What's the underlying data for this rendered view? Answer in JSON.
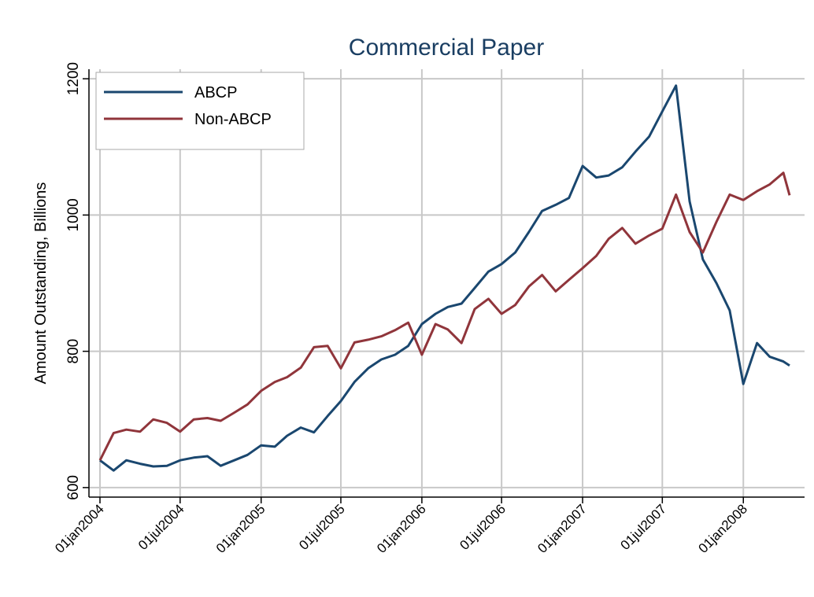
{
  "chart_data": {
    "type": "line",
    "title": "Commercial Paper",
    "y_label": "Amount Outstanding, Billions",
    "x": [
      "2004-01-01",
      "2004-02-01",
      "2004-03-01",
      "2004-04-01",
      "2004-05-01",
      "2004-06-01",
      "2004-07-01",
      "2004-08-01",
      "2004-09-01",
      "2004-10-01",
      "2004-11-01",
      "2004-12-01",
      "2005-01-01",
      "2005-02-01",
      "2005-03-01",
      "2005-04-01",
      "2005-05-01",
      "2005-06-01",
      "2005-07-01",
      "2005-08-01",
      "2005-09-01",
      "2005-10-01",
      "2005-11-01",
      "2005-12-01",
      "2006-01-01",
      "2006-02-01",
      "2006-03-01",
      "2006-04-01",
      "2006-05-01",
      "2006-06-01",
      "2006-07-01",
      "2006-08-01",
      "2006-09-01",
      "2006-10-01",
      "2006-11-01",
      "2006-12-01",
      "2007-01-01",
      "2007-02-01",
      "2007-03-01",
      "2007-04-01",
      "2007-05-01",
      "2007-06-01",
      "2007-07-01",
      "2007-08-01",
      "2007-09-01",
      "2007-10-01",
      "2007-11-01",
      "2007-12-01",
      "2008-01-01",
      "2008-02-01",
      "2008-03-01",
      "2008-04-01",
      "2008-04-15"
    ],
    "series": [
      {
        "name": "ABCP",
        "color": "#1a476f",
        "values": [
          640,
          625,
          640,
          635,
          631,
          632,
          640,
          644,
          646,
          632,
          640,
          648,
          662,
          660,
          676,
          688,
          681,
          705,
          727,
          755,
          775,
          788,
          795,
          808,
          840,
          855,
          865,
          870,
          893,
          917,
          928,
          945,
          975,
          1006,
          1015,
          1025,
          1072,
          1055,
          1058,
          1070,
          1093,
          1115,
          1152,
          1190,
          1020,
          935,
          900,
          860,
          752,
          812,
          792,
          785,
          779
        ]
      },
      {
        "name": "Non-ABCP",
        "color": "#90353b",
        "values": [
          640,
          680,
          685,
          682,
          700,
          695,
          682,
          700,
          702,
          698,
          710,
          722,
          742,
          755,
          762,
          776,
          806,
          808,
          775,
          813,
          817,
          822,
          831,
          842,
          795,
          840,
          832,
          812,
          862,
          877,
          855,
          868,
          895,
          912,
          888,
          905,
          922,
          940,
          965,
          981,
          958,
          970,
          980,
          1030,
          975,
          945,
          990,
          1030,
          1022,
          1035,
          1045,
          1062,
          1029
        ]
      }
    ],
    "xlim": [
      "2003-12-07",
      "2008-05-19"
    ],
    "xticks": [
      {
        "value": "2004-01-01",
        "label": "01jan2004"
      },
      {
        "value": "2004-07-01",
        "label": "01jul2004"
      },
      {
        "value": "2005-01-01",
        "label": "01jan2005"
      },
      {
        "value": "2005-07-01",
        "label": "01jul2005"
      },
      {
        "value": "2006-01-01",
        "label": "01jan2006"
      },
      {
        "value": "2006-07-01",
        "label": "01jul2006"
      },
      {
        "value": "2007-01-01",
        "label": "01jan2007"
      },
      {
        "value": "2007-07-01",
        "label": "01jul2007"
      },
      {
        "value": "2008-01-01",
        "label": "01jan2008"
      }
    ],
    "ylim": [
      586,
      1214
    ],
    "yticks": [
      600,
      800,
      1000,
      1200
    ],
    "grid": true,
    "legend": "top-left"
  }
}
